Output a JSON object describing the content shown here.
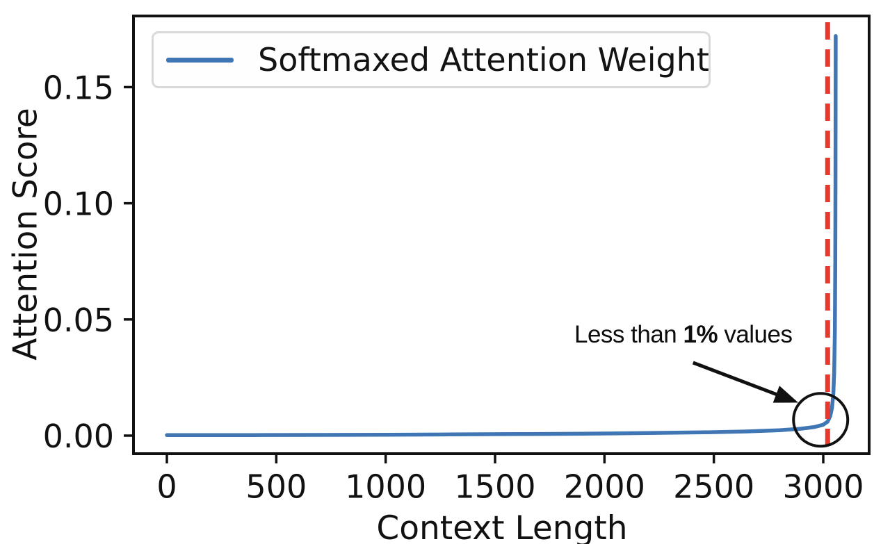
{
  "figure": {
    "background": "#ffffff"
  },
  "colors": {
    "curve_blue": "#4076b4",
    "vline_red": "#e8392c",
    "axis_black": "#111111",
    "legend_border": "#d9d9d9"
  },
  "chart_data": {
    "type": "line",
    "title": "",
    "xlabel": "Context Length",
    "ylabel": "Attention Score",
    "xlim": [
      -150,
      3210
    ],
    "ylim": [
      -0.008,
      0.1805
    ],
    "grid": false,
    "legend_position": "upper left",
    "legend": [
      {
        "label": "Softmaxed Attention Weight",
        "color": "#4076b4"
      }
    ],
    "x_ticks": [
      {
        "value": 0,
        "label": "0"
      },
      {
        "value": 500,
        "label": "500"
      },
      {
        "value": 1000,
        "label": "1000"
      },
      {
        "value": 1500,
        "label": "1500"
      },
      {
        "value": 2000,
        "label": "2000"
      },
      {
        "value": 2500,
        "label": "2500"
      },
      {
        "value": 3000,
        "label": "3000"
      }
    ],
    "y_ticks": [
      {
        "value": 0,
        "label": "0.00"
      },
      {
        "value": 0.05,
        "label": "0.05"
      },
      {
        "value": 0.1,
        "label": "0.10"
      },
      {
        "value": 0.15,
        "label": "0.15"
      }
    ],
    "series": [
      {
        "name": "Softmaxed Attention Weight",
        "color": "#4076b4",
        "points": [
          [
            0,
            0.0002
          ],
          [
            150,
            0.0002
          ],
          [
            400,
            0.00025
          ],
          [
            700,
            0.0003
          ],
          [
            1000,
            0.0004
          ],
          [
            1300,
            0.0005
          ],
          [
            1600,
            0.00065
          ],
          [
            1900,
            0.0008
          ],
          [
            2200,
            0.0011
          ],
          [
            2450,
            0.0014
          ],
          [
            2650,
            0.0018
          ],
          [
            2800,
            0.0023
          ],
          [
            2900,
            0.003
          ],
          [
            2960,
            0.0037
          ],
          [
            3000,
            0.0047
          ],
          [
            3020,
            0.006
          ],
          [
            3032,
            0.0085
          ],
          [
            3040,
            0.012
          ],
          [
            3046,
            0.018
          ],
          [
            3050,
            0.027
          ],
          [
            3053,
            0.045
          ],
          [
            3055,
            0.075
          ],
          [
            3056,
            0.11
          ],
          [
            3057,
            0.172
          ]
        ],
        "peak": {
          "x": 3057,
          "y": 0.172
        }
      }
    ],
    "vline": {
      "x": 3020,
      "color": "#e8392c",
      "style": "dashed"
    },
    "annotation": {
      "text_prefix": "Less than ",
      "text_bold": "1%",
      "text_suffix": " values",
      "arrow": {
        "from_x": 2405,
        "from_y": 0.0314,
        "to_x": 2886,
        "to_y": 0.0142
      },
      "circle": {
        "x": 2988,
        "y": 0.0068
      }
    }
  }
}
